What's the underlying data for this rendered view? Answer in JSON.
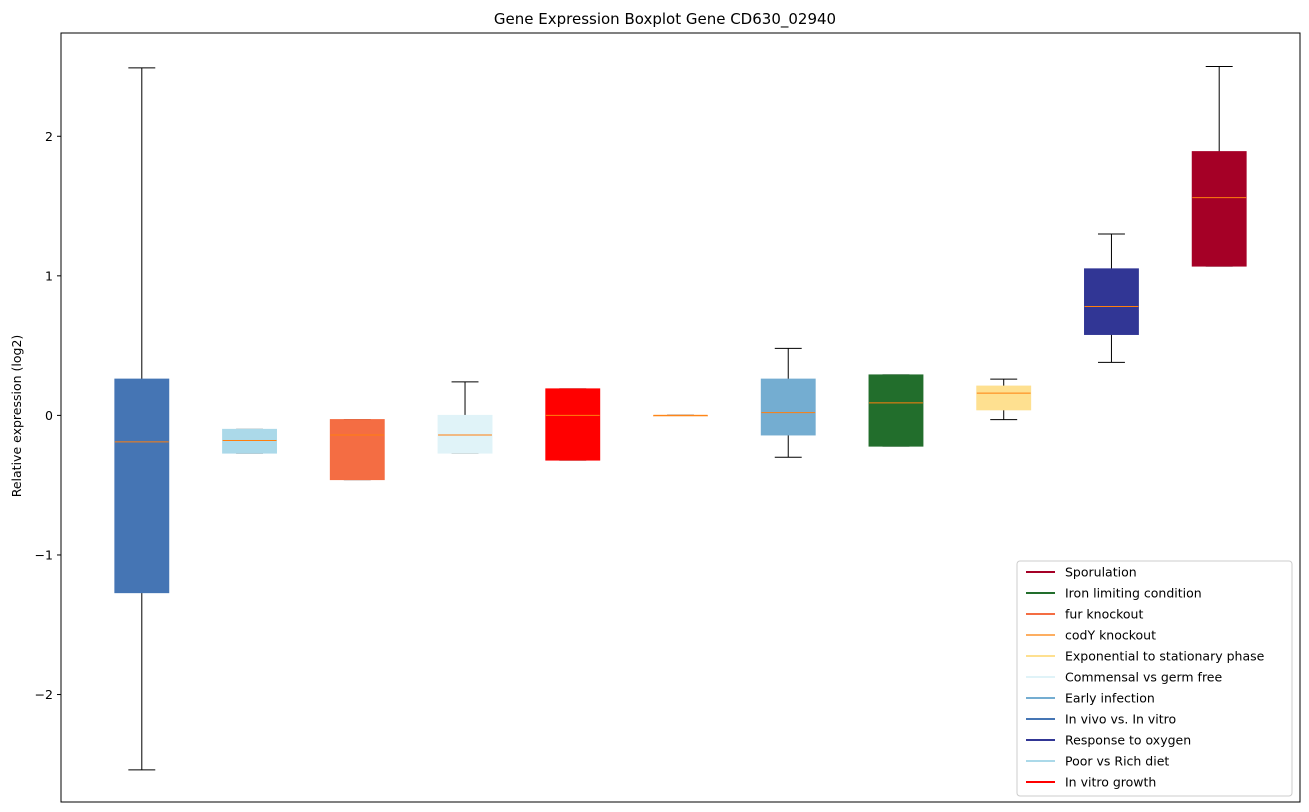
{
  "chart_data": {
    "type": "boxplot",
    "title": "Gene Expression Boxplot Gene CD630_02940",
    "xlabel": "",
    "ylabel": "Relative expression (log2)",
    "ylim": [
      -2.77,
      2.74
    ],
    "yticks": [
      -2,
      -1,
      0,
      1,
      2
    ],
    "ytick_labels": [
      "−2",
      "−1",
      "0",
      "1",
      "2"
    ],
    "grid": false,
    "legend_placement": "lower-right",
    "median_color": "#ff7f0e",
    "boxes": [
      {
        "series": "In vivo vs. In vitro",
        "color": "#4575b4",
        "whislo": -2.54,
        "q1": -1.27,
        "med": -0.19,
        "q3": 0.26,
        "whishi": 2.49
      },
      {
        "series": "Poor vs Rich diet",
        "color": "#abd9e9",
        "whislo": -0.27,
        "q1": -0.27,
        "med": -0.18,
        "q3": -0.1,
        "whishi": -0.1
      },
      {
        "series": "fur knockout",
        "color": "#f46d43",
        "whislo": -0.46,
        "q1": -0.46,
        "med": -0.14,
        "q3": -0.03,
        "whishi": -0.03
      },
      {
        "series": "Commensal vs germ free",
        "color": "#e0f3f8",
        "whislo": -0.27,
        "q1": -0.27,
        "med": -0.14,
        "q3": 0.0,
        "whishi": 0.24
      },
      {
        "series": "In vitro growth",
        "color": "#ff0000",
        "whislo": -0.32,
        "q1": -0.32,
        "med": 0.0,
        "q3": 0.19,
        "whishi": 0.19
      },
      {
        "series": "codY knockout",
        "color": "#fdae61",
        "whislo": 0.0,
        "q1": 0.0,
        "med": 0.0,
        "q3": 0.0,
        "whishi": 0.0
      },
      {
        "series": "Early infection",
        "color": "#74add1",
        "whislo": -0.3,
        "q1": -0.14,
        "med": 0.02,
        "q3": 0.26,
        "whishi": 0.48
      },
      {
        "series": "Iron limiting condition",
        "color": "#226e2c",
        "whislo": -0.22,
        "q1": -0.22,
        "med": 0.09,
        "q3": 0.29,
        "whishi": 0.29
      },
      {
        "series": "Exponential to stationary phase",
        "color": "#fee090",
        "whislo": -0.03,
        "q1": 0.04,
        "med": 0.16,
        "q3": 0.21,
        "whishi": 0.26
      },
      {
        "series": "Response to oxygen",
        "color": "#313695",
        "whislo": 0.38,
        "q1": 0.58,
        "med": 0.78,
        "q3": 1.05,
        "whishi": 1.3
      },
      {
        "series": "Sporulation",
        "color": "#a50026",
        "whislo": 1.07,
        "q1": 1.07,
        "med": 1.56,
        "q3": 1.89,
        "whishi": 2.5
      }
    ],
    "legend": [
      {
        "name": "Sporulation",
        "color": "#a50026"
      },
      {
        "name": "Iron limiting condition",
        "color": "#226e2c"
      },
      {
        "name": "fur knockout",
        "color": "#f46d43"
      },
      {
        "name": "codY knockout",
        "color": "#fdae61"
      },
      {
        "name": "Exponential to stationary phase",
        "color": "#fee090"
      },
      {
        "name": "Commensal vs germ free",
        "color": "#e0f3f8"
      },
      {
        "name": "Early infection",
        "color": "#74add1"
      },
      {
        "name": "In vivo vs. In vitro",
        "color": "#4575b4"
      },
      {
        "name": "Response to oxygen",
        "color": "#313695"
      },
      {
        "name": "Poor vs Rich diet",
        "color": "#abd9e9"
      },
      {
        "name": "In vitro growth",
        "color": "#ff0000"
      }
    ]
  }
}
